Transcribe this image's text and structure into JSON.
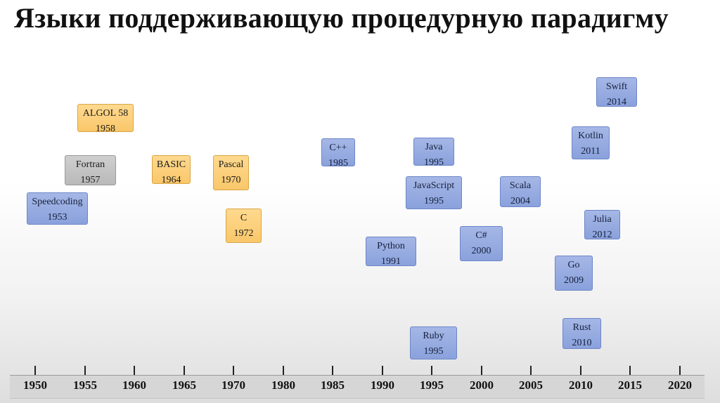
{
  "title": "Языки поддерживающую процедурную парадигму",
  "colors": {
    "blue": "#8aa1dc",
    "orange": "#f9c76a",
    "gray": "#b9b9b9"
  },
  "axis": {
    "ticks": [
      "1950",
      "1955",
      "1960",
      "1965",
      "1970",
      "1980",
      "1985",
      "1990",
      "1995",
      "2000",
      "2005",
      "2010",
      "2015",
      "2020"
    ]
  },
  "languages": [
    {
      "name": "Speedcoding",
      "year": "1953",
      "color": "blue"
    },
    {
      "name": "Fortran",
      "year": "1957",
      "color": "gray"
    },
    {
      "name": "ALGOL 58",
      "year": "1958",
      "color": "orange"
    },
    {
      "name": "BASIC",
      "year": "1964",
      "color": "orange"
    },
    {
      "name": "Pascal",
      "year": "1970",
      "color": "orange"
    },
    {
      "name": "C",
      "year": "1972",
      "color": "orange"
    },
    {
      "name": "C++",
      "year": "1985",
      "color": "blue"
    },
    {
      "name": "Python",
      "year": "1991",
      "color": "blue"
    },
    {
      "name": "Java",
      "year": "1995",
      "color": "blue"
    },
    {
      "name": "JavaScript",
      "year": "1995",
      "color": "blue"
    },
    {
      "name": "Ruby",
      "year": "1995",
      "color": "blue"
    },
    {
      "name": "C#",
      "year": "2000",
      "color": "blue"
    },
    {
      "name": "Scala",
      "year": "2004",
      "color": "blue"
    },
    {
      "name": "Go",
      "year": "2009",
      "color": "blue"
    },
    {
      "name": "Rust",
      "year": "2010",
      "color": "blue"
    },
    {
      "name": "Kotlin",
      "year": "2011",
      "color": "blue"
    },
    {
      "name": "Julia",
      "year": "2012",
      "color": "blue"
    },
    {
      "name": "Swift",
      "year": "2014",
      "color": "blue"
    }
  ]
}
